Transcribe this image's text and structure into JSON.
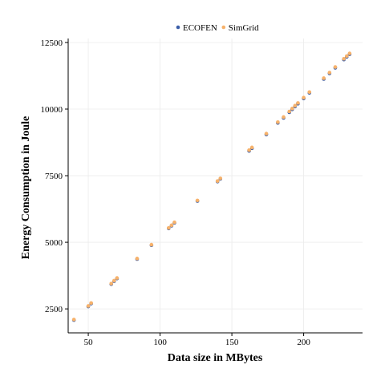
{
  "chart_data": {
    "type": "scatter",
    "title": "",
    "xlabel": "Data size in MBytes",
    "ylabel": "Energy Consumption in Joule",
    "xlim": [
      36,
      241
    ],
    "ylim": [
      1600,
      12650
    ],
    "x_ticks": [
      50,
      100,
      150,
      200
    ],
    "y_ticks": [
      2500,
      5000,
      7500,
      10000,
      12500
    ],
    "x_tick_labels": [
      "50",
      "100",
      "150",
      "200"
    ],
    "y_tick_labels": [
      "2500",
      "5000",
      "7500",
      "10000",
      "12500"
    ],
    "grid": true,
    "legend_position": "top",
    "series": [
      {
        "name": "ECOFEN",
        "color": "#3b5ea8",
        "points": [
          [
            40,
            2080
          ],
          [
            50,
            2590
          ],
          [
            52,
            2700
          ],
          [
            66,
            3430
          ],
          [
            68,
            3540
          ],
          [
            70,
            3640
          ],
          [
            84,
            4370
          ],
          [
            94,
            4890
          ],
          [
            106,
            5520
          ],
          [
            108,
            5620
          ],
          [
            110,
            5730
          ],
          [
            126,
            6550
          ],
          [
            140,
            7280
          ],
          [
            142,
            7380
          ],
          [
            162,
            8430
          ],
          [
            164,
            8530
          ],
          [
            174,
            9050
          ],
          [
            182,
            9480
          ],
          [
            186,
            9670
          ],
          [
            190,
            9880
          ],
          [
            192,
            9990
          ],
          [
            194,
            10100
          ],
          [
            196,
            10200
          ],
          [
            200,
            10400
          ],
          [
            204,
            10610
          ],
          [
            214,
            11130
          ],
          [
            218,
            11340
          ],
          [
            222,
            11550
          ],
          [
            228,
            11860
          ],
          [
            230,
            11960
          ],
          [
            232,
            12060
          ]
        ]
      },
      {
        "name": "SimGrid",
        "color": "#f7b26b",
        "points": [
          [
            40,
            2100
          ],
          [
            50,
            2610
          ],
          [
            52,
            2720
          ],
          [
            66,
            3450
          ],
          [
            68,
            3560
          ],
          [
            70,
            3660
          ],
          [
            84,
            4390
          ],
          [
            94,
            4910
          ],
          [
            106,
            5540
          ],
          [
            108,
            5640
          ],
          [
            110,
            5750
          ],
          [
            126,
            6570
          ],
          [
            140,
            7300
          ],
          [
            142,
            7400
          ],
          [
            162,
            8460
          ],
          [
            164,
            8560
          ],
          [
            174,
            9080
          ],
          [
            182,
            9510
          ],
          [
            186,
            9700
          ],
          [
            190,
            9910
          ],
          [
            192,
            10020
          ],
          [
            194,
            10130
          ],
          [
            196,
            10230
          ],
          [
            200,
            10430
          ],
          [
            204,
            10640
          ],
          [
            214,
            11160
          ],
          [
            218,
            11370
          ],
          [
            222,
            11580
          ],
          [
            228,
            11890
          ],
          [
            230,
            11990
          ],
          [
            232,
            12090
          ]
        ]
      }
    ]
  }
}
